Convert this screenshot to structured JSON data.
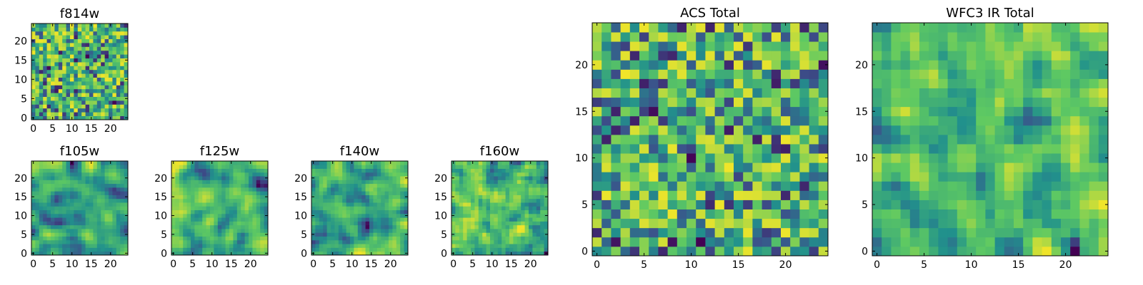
{
  "figure": {
    "background": "#ffffff",
    "colormap": "viridis",
    "colormap_stops": [
      "#440154",
      "#3b528b",
      "#21918c",
      "#5ec962",
      "#fde725"
    ]
  },
  "chart_data": [
    {
      "type": "heatmap",
      "title": "f814w",
      "grid_size": [
        25,
        25
      ],
      "xlim": [
        0,
        24
      ],
      "ylim": [
        0,
        24
      ],
      "xticks": [
        "0",
        "5",
        "10",
        "15",
        "20"
      ],
      "yticks": [
        "0",
        "5",
        "10",
        "15",
        "20"
      ],
      "colormap": "viridis",
      "value_range": [
        0,
        1
      ],
      "pattern": "fine random noise, mostly green-yellow with scattered dark cells",
      "seed": 11,
      "smoothness": 0
    },
    {
      "type": "heatmap",
      "title": "f105w",
      "grid_size": [
        25,
        25
      ],
      "xlim": [
        0,
        24
      ],
      "ylim": [
        0,
        24
      ],
      "xticks": [
        "0",
        "5",
        "10",
        "15",
        "20"
      ],
      "yticks": [
        "0",
        "5",
        "10",
        "15",
        "20"
      ],
      "colormap": "viridis",
      "value_range": [
        0,
        1
      ],
      "pattern": "smooth blotchy noise, mostly green-yellow",
      "seed": 23,
      "smoothness": 2
    },
    {
      "type": "heatmap",
      "title": "f125w",
      "grid_size": [
        25,
        25
      ],
      "xlim": [
        0,
        24
      ],
      "ylim": [
        0,
        24
      ],
      "xticks": [
        "0",
        "5",
        "10",
        "15",
        "20"
      ],
      "yticks": [
        "0",
        "5",
        "10",
        "15",
        "20"
      ],
      "colormap": "viridis",
      "value_range": [
        0,
        1
      ],
      "pattern": "smooth blotchy noise, mostly green-yellow",
      "seed": 37,
      "smoothness": 2
    },
    {
      "type": "heatmap",
      "title": "f140w",
      "grid_size": [
        25,
        25
      ],
      "xlim": [
        0,
        24
      ],
      "ylim": [
        0,
        24
      ],
      "xticks": [
        "0",
        "5",
        "10",
        "15",
        "20"
      ],
      "yticks": [
        "0",
        "5",
        "10",
        "15",
        "20"
      ],
      "colormap": "viridis",
      "value_range": [
        0,
        1
      ],
      "pattern": "smooth blotchy noise with more dark blue patches",
      "seed": 41,
      "smoothness": 2
    },
    {
      "type": "heatmap",
      "title": "f160w",
      "grid_size": [
        25,
        25
      ],
      "xlim": [
        0,
        24
      ],
      "ylim": [
        0,
        24
      ],
      "xticks": [
        "0",
        "5",
        "10",
        "15",
        "20"
      ],
      "yticks": [
        "0",
        "5",
        "10",
        "15",
        "20"
      ],
      "colormap": "viridis",
      "value_range": [
        0,
        1
      ],
      "pattern": "blocky noise, mostly green-yellow",
      "seed": 53,
      "smoothness": 1
    },
    {
      "type": "heatmap",
      "title": "ACS Total",
      "grid_size": [
        25,
        25
      ],
      "xlim": [
        0,
        24
      ],
      "ylim": [
        0,
        24
      ],
      "xticks": [
        "0",
        "5",
        "10",
        "15",
        "20"
      ],
      "yticks": [
        "0",
        "5",
        "10",
        "15",
        "20"
      ],
      "colormap": "viridis",
      "value_range": [
        0,
        1
      ],
      "pattern": "coarse random noise, mostly green with scattered dark cells",
      "seed": 67,
      "smoothness": 0
    },
    {
      "type": "heatmap",
      "title": "WFC3 IR Total",
      "grid_size": [
        25,
        25
      ],
      "xlim": [
        0,
        24
      ],
      "ylim": [
        0,
        24
      ],
      "xticks": [
        "0",
        "5",
        "10",
        "15",
        "20"
      ],
      "yticks": [
        "0",
        "5",
        "10",
        "15",
        "20"
      ],
      "colormap": "viridis",
      "value_range": [
        0,
        1
      ],
      "pattern": "coarse random noise, mostly green-yellow with scattered dark cells",
      "seed": 79,
      "smoothness": 1
    }
  ]
}
